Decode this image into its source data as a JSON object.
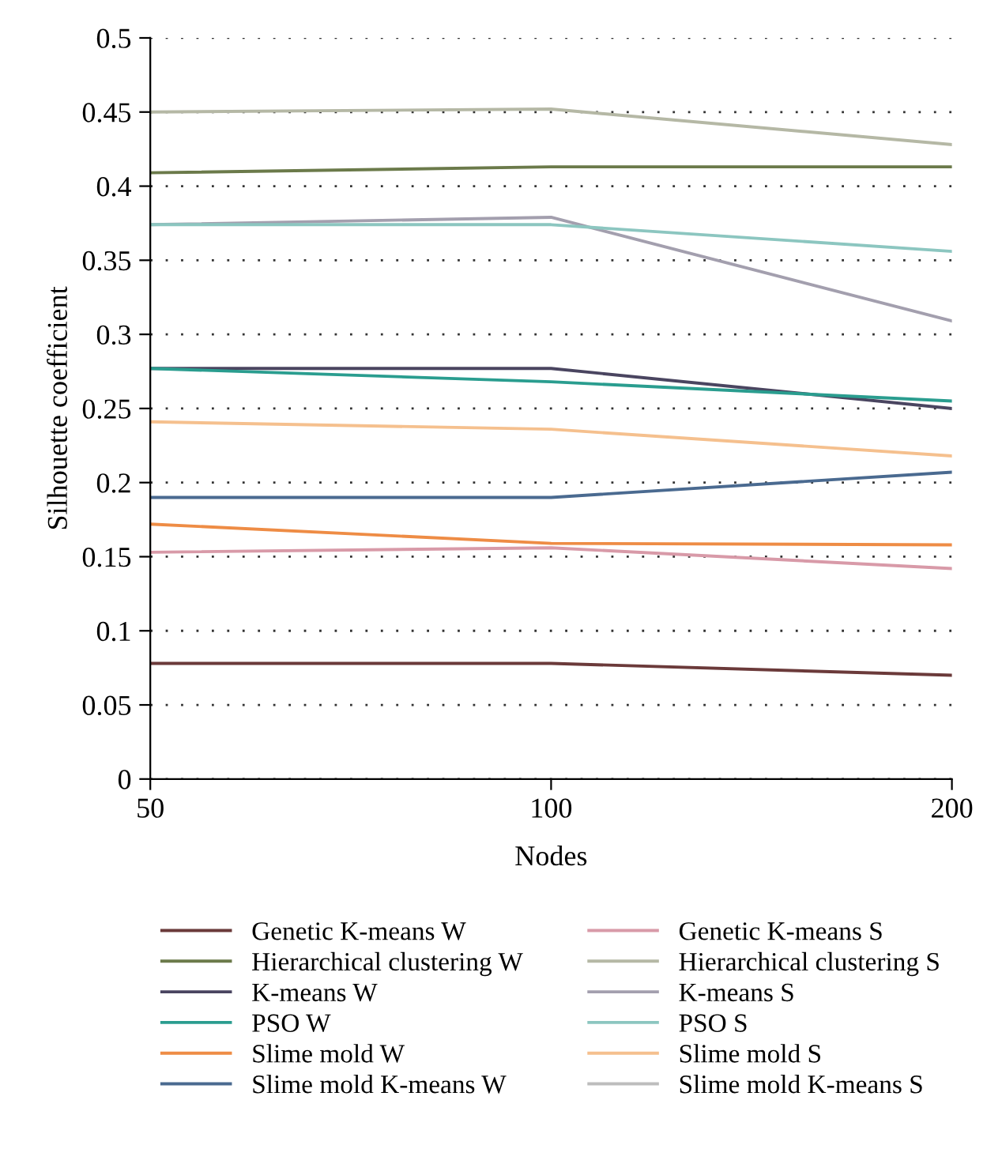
{
  "chart_data": {
    "type": "line",
    "xlabel": "Nodes",
    "ylabel": "Silhouette coefficient",
    "categories": [
      "50",
      "100",
      "200"
    ],
    "ylim": [
      0,
      0.5
    ],
    "yticks": [
      0,
      0.05,
      0.1,
      0.15,
      0.2,
      0.25,
      0.3,
      0.35,
      0.4,
      0.45,
      0.5
    ],
    "grid": "y",
    "legend": "bottom",
    "marker": "none",
    "line_style": "solid",
    "series": [
      {
        "name": "Genetic K-means W",
        "color": "#6b3a3a",
        "values": [
          0.078,
          0.078,
          0.07
        ]
      },
      {
        "name": "Hierarchical clustering W",
        "color": "#6b7a4a",
        "values": [
          0.409,
          0.413,
          0.413
        ]
      },
      {
        "name": "K-means W",
        "color": "#4a4560",
        "values": [
          0.277,
          0.277,
          0.25
        ]
      },
      {
        "name": "PSO W",
        "color": "#2a9d8f",
        "values": [
          0.277,
          0.268,
          0.255
        ]
      },
      {
        "name": "Slime mold W",
        "color": "#ee8c45",
        "values": [
          0.172,
          0.159,
          0.158
        ]
      },
      {
        "name": "Slime mold K-means W",
        "color": "#4a6a90",
        "values": [
          0.19,
          0.19,
          0.207
        ]
      },
      {
        "name": "Genetic K-means S",
        "color": "#d89aa8",
        "values": [
          0.153,
          0.156,
          0.142
        ]
      },
      {
        "name": "Hierarchical clustering S",
        "color": "#b5b8a5",
        "values": [
          0.45,
          0.452,
          0.428
        ]
      },
      {
        "name": "K-means S",
        "color": "#a39fae",
        "values": [
          0.374,
          0.379,
          0.309
        ]
      },
      {
        "name": "PSO S",
        "color": "#8cc6c0",
        "values": [
          0.374,
          0.374,
          0.356
        ]
      },
      {
        "name": "Slime mold S",
        "color": "#f5c08e",
        "values": [
          0.241,
          0.236,
          0.218
        ]
      },
      {
        "name": "Slime mold K-means S",
        "color": "#bdbdbd",
        "values": [
          null,
          null,
          null
        ]
      }
    ]
  }
}
